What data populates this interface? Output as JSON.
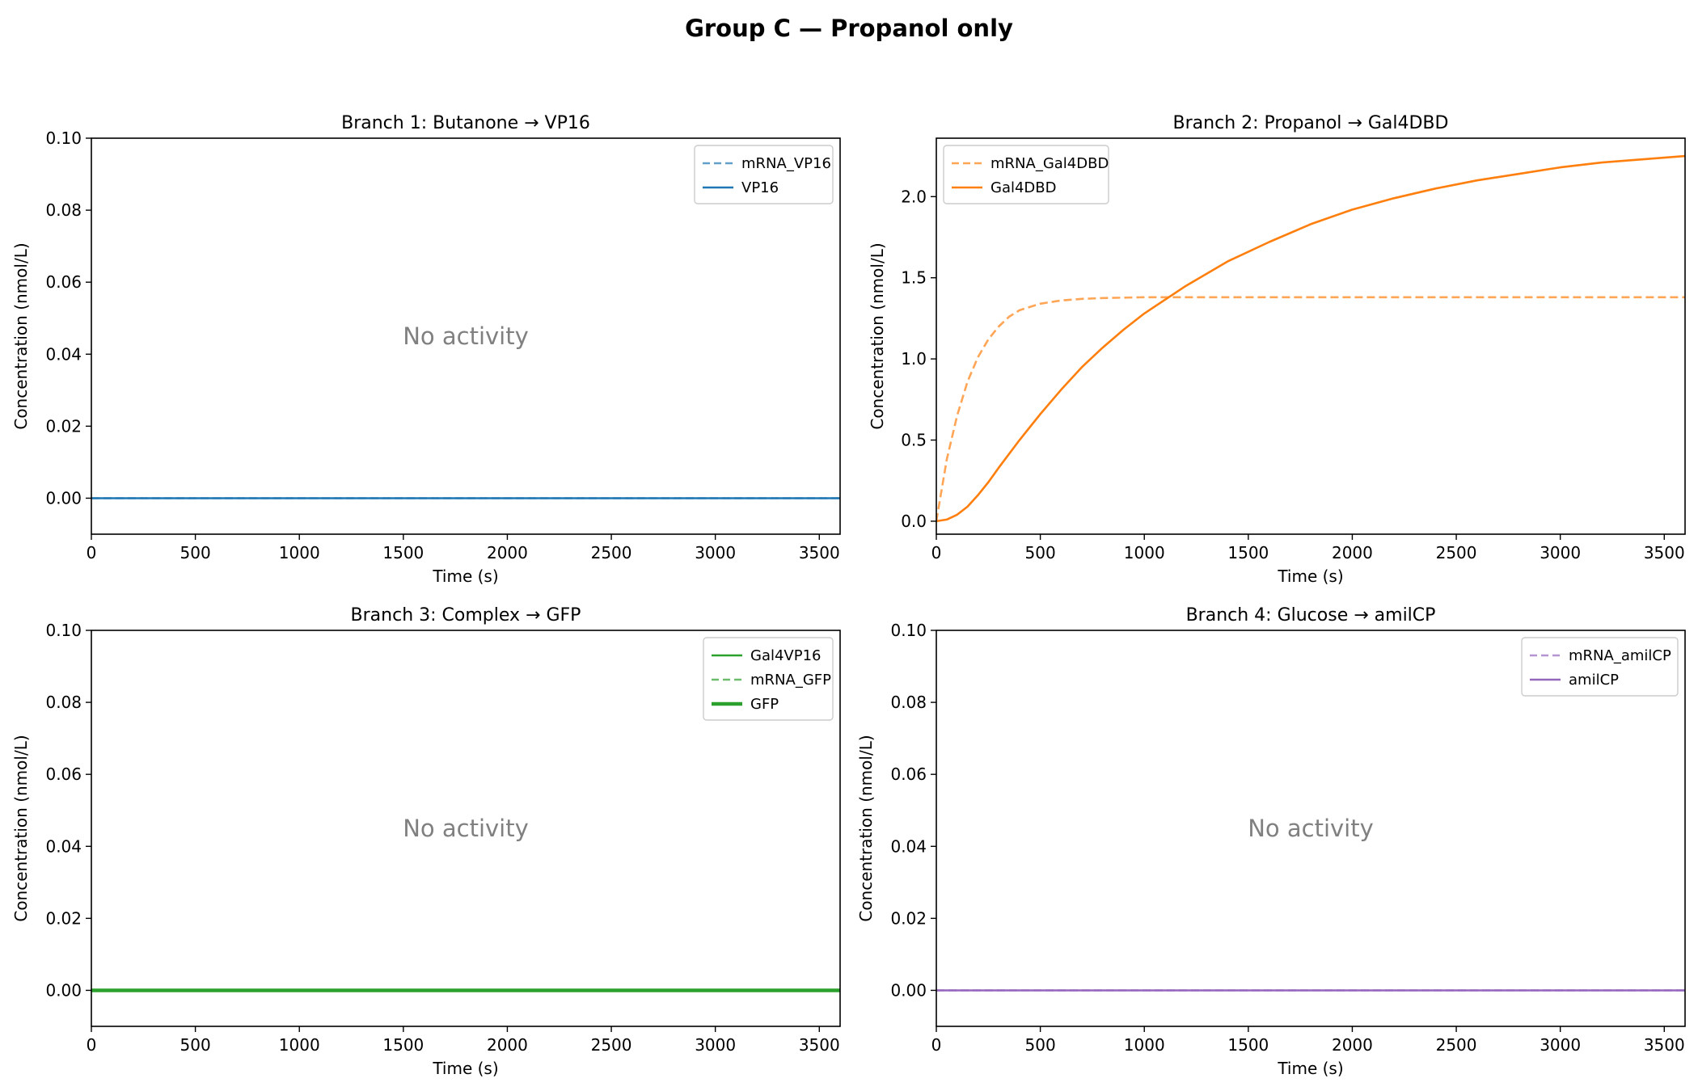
{
  "figure_title": "Group C — Propanol only",
  "colors": {
    "vp16": "#1f77b4",
    "gal4dbd": "#ff7f0e",
    "gfp": "#2ca02c",
    "amilcp": "#9467bd",
    "annotation": "#808080",
    "axis": "#000000"
  },
  "chart_data": [
    {
      "type": "line",
      "title": "Branch 1: Butanone → VP16",
      "xlabel": "Time (s)",
      "ylabel": "Concentration (nmol/L)",
      "xlim": [
        0,
        3600
      ],
      "ylim": [
        -0.01,
        0.1
      ],
      "xticks": [
        0,
        500,
        1000,
        1500,
        2000,
        2500,
        3000,
        3500
      ],
      "xtick_labels": [
        "0",
        "500",
        "1000",
        "1500",
        "2000",
        "2500",
        "3000",
        "3500"
      ],
      "yticks": [
        0.0,
        0.02,
        0.04,
        0.06,
        0.08,
        0.1
      ],
      "ytick_labels": [
        "0.00",
        "0.02",
        "0.04",
        "0.06",
        "0.08",
        "0.10"
      ],
      "legend_position": "top-right",
      "annotation": "No activity",
      "series": [
        {
          "name": "mRNA_VP16",
          "color": "#1f77b4",
          "style": "dashed",
          "alpha": 0.7,
          "width": "normal",
          "x": [
            0,
            3600
          ],
          "y": [
            0,
            0
          ]
        },
        {
          "name": "VP16",
          "color": "#1f77b4",
          "style": "solid",
          "alpha": 1,
          "width": "normal",
          "x": [
            0,
            3600
          ],
          "y": [
            0,
            0
          ]
        }
      ]
    },
    {
      "type": "line",
      "title": "Branch 2: Propanol → Gal4DBD",
      "xlabel": "Time (s)",
      "ylabel": "Concentration (nmol/L)",
      "xlim": [
        0,
        3600
      ],
      "ylim": [
        -0.08,
        2.36
      ],
      "xticks": [
        0,
        500,
        1000,
        1500,
        2000,
        2500,
        3000,
        3500
      ],
      "xtick_labels": [
        "0",
        "500",
        "1000",
        "1500",
        "2000",
        "2500",
        "3000",
        "3500"
      ],
      "yticks": [
        0.0,
        0.5,
        1.0,
        1.5,
        2.0
      ],
      "ytick_labels": [
        "0.0",
        "0.5",
        "1.0",
        "1.5",
        "2.0"
      ],
      "legend_position": "top-left",
      "annotation": "",
      "series": [
        {
          "name": "mRNA_Gal4DBD",
          "color": "#ff7f0e",
          "style": "dashed",
          "alpha": 0.7,
          "width": "normal",
          "x": [
            0,
            50,
            100,
            150,
            200,
            250,
            300,
            350,
            400,
            500,
            600,
            700,
            800,
            1000,
            1200,
            1500,
            2000,
            2500,
            3000,
            3600
          ],
          "y": [
            0,
            0.38,
            0.65,
            0.86,
            1.01,
            1.12,
            1.2,
            1.26,
            1.3,
            1.34,
            1.36,
            1.37,
            1.375,
            1.38,
            1.38,
            1.38,
            1.38,
            1.38,
            1.38,
            1.38
          ]
        },
        {
          "name": "Gal4DBD",
          "color": "#ff7f0e",
          "style": "solid",
          "alpha": 1,
          "width": "normal",
          "x": [
            0,
            50,
            100,
            150,
            200,
            250,
            300,
            400,
            500,
            600,
            700,
            800,
            900,
            1000,
            1200,
            1400,
            1600,
            1800,
            2000,
            2200,
            2400,
            2600,
            2800,
            3000,
            3200,
            3400,
            3600
          ],
          "y": [
            0,
            0.01,
            0.04,
            0.09,
            0.16,
            0.24,
            0.33,
            0.5,
            0.66,
            0.81,
            0.95,
            1.07,
            1.18,
            1.28,
            1.45,
            1.6,
            1.72,
            1.83,
            1.92,
            1.99,
            2.05,
            2.1,
            2.14,
            2.18,
            2.21,
            2.23,
            2.25
          ]
        }
      ]
    },
    {
      "type": "line",
      "title": "Branch 3: Complex → GFP",
      "xlabel": "Time (s)",
      "ylabel": "Concentration (nmol/L)",
      "xlim": [
        0,
        3600
      ],
      "ylim": [
        -0.01,
        0.1
      ],
      "xticks": [
        0,
        500,
        1000,
        1500,
        2000,
        2500,
        3000,
        3500
      ],
      "xtick_labels": [
        "0",
        "500",
        "1000",
        "1500",
        "2000",
        "2500",
        "3000",
        "3500"
      ],
      "yticks": [
        0.0,
        0.02,
        0.04,
        0.06,
        0.08,
        0.1
      ],
      "ytick_labels": [
        "0.00",
        "0.02",
        "0.04",
        "0.06",
        "0.08",
        "0.10"
      ],
      "legend_position": "top-right",
      "annotation": "No activity",
      "series": [
        {
          "name": "Gal4VP16",
          "color": "#2ca02c",
          "style": "solid",
          "alpha": 1,
          "width": "normal",
          "x": [
            0,
            3600
          ],
          "y": [
            0,
            0
          ]
        },
        {
          "name": "mRNA_GFP",
          "color": "#2ca02c",
          "style": "dashed",
          "alpha": 0.7,
          "width": "normal",
          "x": [
            0,
            3600
          ],
          "y": [
            0,
            0
          ]
        },
        {
          "name": "GFP",
          "color": "#2ca02c",
          "style": "solid",
          "alpha": 1,
          "width": "thick",
          "x": [
            0,
            3600
          ],
          "y": [
            0,
            0
          ]
        }
      ]
    },
    {
      "type": "line",
      "title": "Branch 4: Glucose → amilCP",
      "xlabel": "Time (s)",
      "ylabel": "Concentration (nmol/L)",
      "xlim": [
        0,
        3600
      ],
      "ylim": [
        -0.01,
        0.1
      ],
      "xticks": [
        0,
        500,
        1000,
        1500,
        2000,
        2500,
        3000,
        3500
      ],
      "xtick_labels": [
        "0",
        "500",
        "1000",
        "1500",
        "2000",
        "2500",
        "3000",
        "3500"
      ],
      "yticks": [
        0.0,
        0.02,
        0.04,
        0.06,
        0.08,
        0.1
      ],
      "ytick_labels": [
        "0.00",
        "0.02",
        "0.04",
        "0.06",
        "0.08",
        "0.10"
      ],
      "legend_position": "top-right",
      "annotation": "No activity",
      "series": [
        {
          "name": "mRNA_amilCP",
          "color": "#9467bd",
          "style": "dashed",
          "alpha": 0.7,
          "width": "normal",
          "x": [
            0,
            3600
          ],
          "y": [
            0,
            0
          ]
        },
        {
          "name": "amilCP",
          "color": "#9467bd",
          "style": "solid",
          "alpha": 1,
          "width": "normal",
          "x": [
            0,
            3600
          ],
          "y": [
            0,
            0
          ]
        }
      ]
    }
  ]
}
